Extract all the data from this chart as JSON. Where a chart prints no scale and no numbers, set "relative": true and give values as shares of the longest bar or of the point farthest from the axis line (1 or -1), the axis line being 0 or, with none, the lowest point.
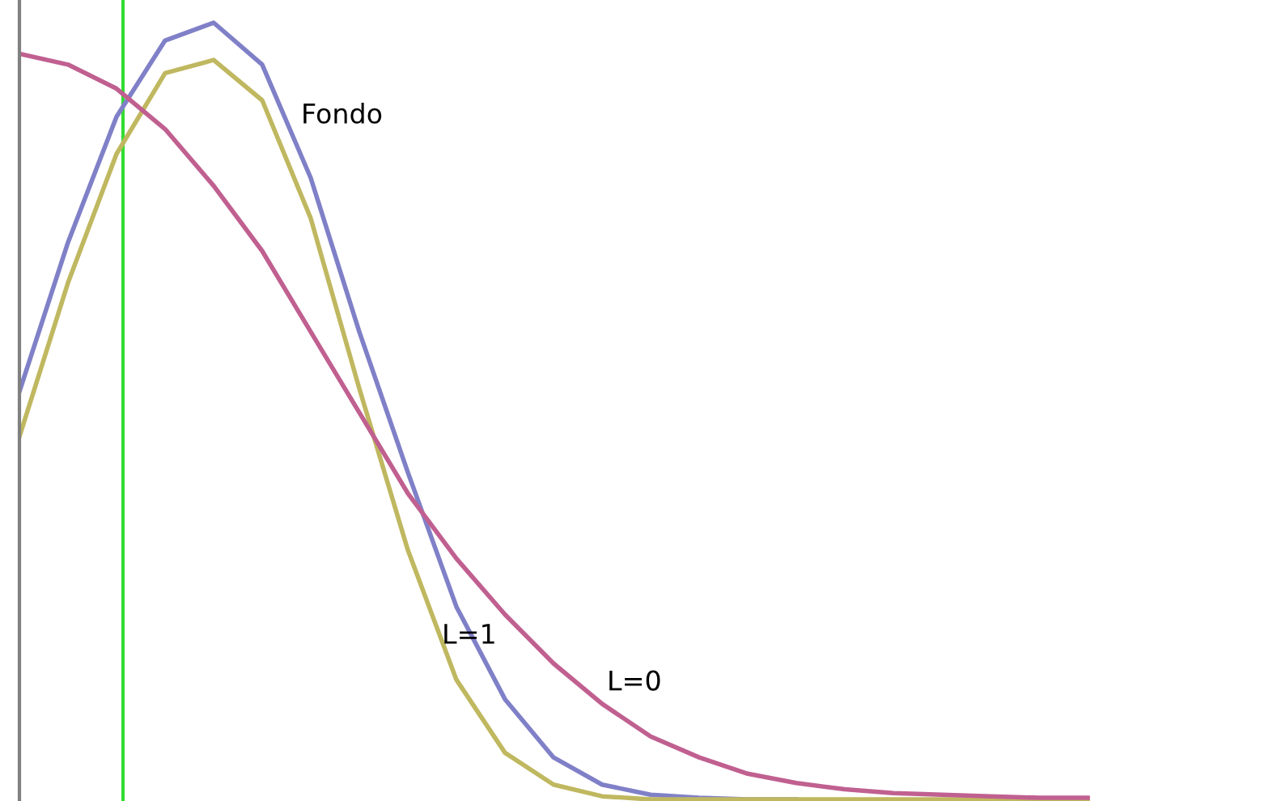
{
  "chart_data": {
    "type": "line",
    "relative": true,
    "legend": false,
    "marker": "none",
    "line_style": "solid",
    "categories": [
      null,
      null,
      null,
      null,
      null,
      null,
      null,
      null,
      null,
      null,
      null,
      null,
      null,
      null,
      null,
      null,
      null,
      null,
      null,
      null,
      null,
      null,
      null
    ],
    "series": [
      {
        "name": "Fondo",
        "color": "#8080c8",
        "values": [
          0.525,
          0.717,
          0.879,
          0.977,
          1.0,
          0.946,
          0.8,
          0.602,
          0.421,
          0.248,
          0.129,
          0.054,
          0.019,
          0.006,
          0.002,
          0,
          0,
          null,
          null,
          null,
          null,
          null,
          null
        ]
      },
      {
        "name": "L=1",
        "color": "#c0b860",
        "values": [
          0.467,
          0.665,
          0.831,
          0.935,
          0.952,
          0.9,
          0.748,
          0.529,
          0.321,
          0.154,
          0.06,
          0.019,
          0.004,
          0,
          0,
          0,
          0,
          0,
          0,
          0,
          0,
          0,
          0
        ]
      },
      {
        "name": "L=0",
        "color": "#c06090",
        "values": [
          0.96,
          0.946,
          0.915,
          0.863,
          0.79,
          0.706,
          0.602,
          0.498,
          0.394,
          0.31,
          0.238,
          0.175,
          0.123,
          0.081,
          0.054,
          0.033,
          0.021,
          0.013,
          0.008,
          0.006,
          0.004,
          0.002,
          0.002
        ]
      }
    ]
  }
}
